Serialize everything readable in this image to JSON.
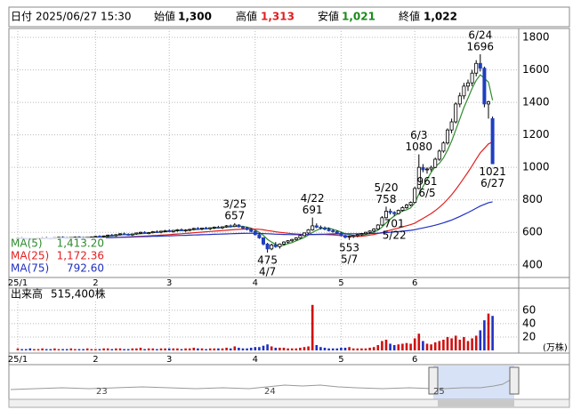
{
  "header": {
    "date_label": "日付",
    "date": "2025/06/27 15:30",
    "open": {
      "label": "始値",
      "value": "1,300"
    },
    "high": {
      "label": "高値",
      "value": "1,313"
    },
    "low": {
      "label": "安値",
      "value": "1,021"
    },
    "close": {
      "label": "終値",
      "value": "1,022"
    }
  },
  "chart_data": {
    "type": "candlestick",
    "categories": [
      "25/1",
      null,
      null,
      null,
      null,
      null,
      null,
      null,
      null,
      null,
      null,
      null,
      null,
      null,
      null,
      null,
      null,
      null,
      null,
      "2",
      null,
      null,
      null,
      null,
      null,
      null,
      null,
      null,
      null,
      null,
      null,
      null,
      null,
      null,
      null,
      null,
      null,
      "3",
      null,
      null,
      null,
      null,
      null,
      null,
      null,
      null,
      null,
      null,
      null,
      null,
      null,
      null,
      null,
      null,
      null,
      null,
      null,
      null,
      "4",
      null,
      null,
      null,
      null,
      null,
      null,
      null,
      null,
      null,
      null,
      null,
      null,
      null,
      null,
      null,
      null,
      null,
      null,
      null,
      null,
      "5",
      null,
      null,
      null,
      null,
      null,
      null,
      null,
      null,
      null,
      null,
      null,
      null,
      null,
      null,
      null,
      null,
      null,
      "6",
      null,
      null,
      null,
      null,
      null,
      null,
      null,
      null,
      null,
      null,
      null,
      null,
      null,
      null,
      null,
      null,
      null,
      null,
      null
    ],
    "ohlc": [
      [
        560,
        568,
        555,
        565
      ],
      [
        565,
        570,
        558,
        562
      ],
      [
        562,
        566,
        556,
        560
      ],
      [
        560,
        565,
        552,
        558
      ],
      [
        558,
        563,
        550,
        561
      ],
      [
        561,
        567,
        556,
        564
      ],
      [
        564,
        570,
        559,
        566
      ],
      [
        566,
        572,
        560,
        563
      ],
      [
        563,
        568,
        557,
        562
      ],
      [
        562,
        569,
        558,
        567
      ],
      [
        567,
        573,
        561,
        569
      ],
      [
        569,
        575,
        563,
        566
      ],
      [
        566,
        571,
        560,
        564
      ],
      [
        564,
        570,
        559,
        568
      ],
      [
        568,
        574,
        562,
        570
      ],
      [
        570,
        576,
        564,
        567
      ],
      [
        567,
        572,
        561,
        565
      ],
      [
        565,
        571,
        560,
        569
      ],
      [
        569,
        575,
        563,
        571
      ],
      [
        571,
        578,
        565,
        575
      ],
      [
        575,
        582,
        569,
        573
      ],
      [
        573,
        580,
        567,
        578
      ],
      [
        578,
        586,
        572,
        583
      ],
      [
        583,
        590,
        576,
        580
      ],
      [
        580,
        588,
        574,
        586
      ],
      [
        586,
        595,
        580,
        591
      ],
      [
        591,
        598,
        584,
        588
      ],
      [
        588,
        594,
        580,
        584
      ],
      [
        584,
        592,
        578,
        590
      ],
      [
        590,
        599,
        585,
        596
      ],
      [
        596,
        604,
        589,
        600
      ],
      [
        600,
        606,
        592,
        595
      ],
      [
        595,
        602,
        588,
        598
      ],
      [
        598,
        608,
        593,
        604
      ],
      [
        604,
        612,
        596,
        601
      ],
      [
        601,
        610,
        594,
        607
      ],
      [
        607,
        615,
        600,
        610
      ],
      [
        610,
        618,
        602,
        605
      ],
      [
        605,
        614,
        598,
        612
      ],
      [
        612,
        620,
        604,
        616
      ],
      [
        616,
        624,
        608,
        611
      ],
      [
        611,
        619,
        603,
        614
      ],
      [
        614,
        622,
        606,
        618
      ],
      [
        618,
        628,
        612,
        624
      ],
      [
        624,
        632,
        616,
        620
      ],
      [
        620,
        628,
        612,
        626
      ],
      [
        626,
        634,
        618,
        622
      ],
      [
        622,
        630,
        614,
        628
      ],
      [
        628,
        636,
        620,
        632
      ],
      [
        632,
        640,
        624,
        628
      ],
      [
        628,
        636,
        620,
        634
      ],
      [
        634,
        645,
        628,
        640
      ],
      [
        640,
        648,
        630,
        636
      ],
      [
        636,
        657,
        632,
        645
      ],
      [
        645,
        650,
        630,
        634
      ],
      [
        634,
        640,
        620,
        626
      ],
      [
        626,
        634,
        612,
        618
      ],
      [
        618,
        624,
        600,
        606
      ],
      [
        606,
        612,
        580,
        586
      ],
      [
        586,
        592,
        560,
        566
      ],
      [
        566,
        570,
        520,
        528
      ],
      [
        528,
        535,
        475,
        498
      ],
      [
        498,
        530,
        490,
        522
      ],
      [
        522,
        540,
        505,
        512
      ],
      [
        512,
        532,
        500,
        528
      ],
      [
        528,
        545,
        520,
        540
      ],
      [
        540,
        552,
        532,
        548
      ],
      [
        548,
        560,
        540,
        556
      ],
      [
        556,
        570,
        550,
        565
      ],
      [
        565,
        585,
        560,
        580
      ],
      [
        580,
        600,
        575,
        596
      ],
      [
        596,
        620,
        590,
        615
      ],
      [
        615,
        691,
        610,
        640
      ],
      [
        640,
        655,
        625,
        632
      ],
      [
        632,
        642,
        618,
        626
      ],
      [
        626,
        636,
        612,
        620
      ],
      [
        620,
        630,
        605,
        610
      ],
      [
        610,
        620,
        598,
        604
      ],
      [
        604,
        612,
        590,
        595
      ],
      [
        595,
        602,
        575,
        580
      ],
      [
        580,
        586,
        562,
        570
      ],
      [
        570,
        578,
        553,
        575
      ],
      [
        575,
        584,
        565,
        580
      ],
      [
        580,
        590,
        570,
        586
      ],
      [
        586,
        596,
        578,
        592
      ],
      [
        592,
        604,
        586,
        600
      ],
      [
        600,
        612,
        592,
        608
      ],
      [
        608,
        625,
        600,
        620
      ],
      [
        620,
        650,
        615,
        645
      ],
      [
        645,
        700,
        640,
        690
      ],
      [
        690,
        758,
        685,
        730
      ],
      [
        730,
        745,
        710,
        722
      ],
      [
        722,
        730,
        701,
        715
      ],
      [
        715,
        740,
        710,
        735
      ],
      [
        735,
        760,
        728,
        752
      ],
      [
        752,
        775,
        745,
        768
      ],
      [
        768,
        790,
        760,
        784
      ],
      [
        784,
        880,
        780,
        870
      ],
      [
        870,
        1080,
        865,
        1000
      ],
      [
        1000,
        1020,
        970,
        985
      ],
      [
        985,
        1000,
        961,
        990
      ],
      [
        990,
        1010,
        975,
        1000
      ],
      [
        1000,
        1060,
        995,
        1050
      ],
      [
        1050,
        1110,
        1040,
        1100
      ],
      [
        1100,
        1160,
        1090,
        1150
      ],
      [
        1150,
        1240,
        1140,
        1230
      ],
      [
        1230,
        1300,
        1210,
        1280
      ],
      [
        1280,
        1400,
        1270,
        1390
      ],
      [
        1390,
        1460,
        1370,
        1440
      ],
      [
        1440,
        1520,
        1420,
        1500
      ],
      [
        1500,
        1540,
        1470,
        1520
      ],
      [
        1520,
        1600,
        1500,
        1580
      ],
      [
        1580,
        1660,
        1560,
        1640
      ],
      [
        1640,
        1696,
        1590,
        1610
      ],
      [
        1610,
        1620,
        1370,
        1390
      ],
      [
        1390,
        1410,
        1300,
        1404
      ],
      [
        1300,
        1313,
        1021,
        1022
      ]
    ],
    "up_color": "#ffffff",
    "down_color": "#1f3fbf",
    "ylim": [
      322,
      1855
    ],
    "yticks": [
      400,
      600,
      800,
      1000,
      1200,
      1400,
      1600,
      1800
    ],
    "grid": true,
    "moving_averages": [
      {
        "name": "MA(5)",
        "period": 5,
        "value": "1,413.20",
        "color": "#2e8b2e"
      },
      {
        "name": "MA(25)",
        "period": 25,
        "value": "1,172.36",
        "color": "#e02020"
      },
      {
        "name": "MA(75)",
        "period": 75,
        "value": "792.60",
        "color": "#2030c0"
      }
    ],
    "highs": [
      {
        "date": "3/25",
        "value": 657
      },
      {
        "date": "4/22",
        "value": 691
      },
      {
        "date": "5/20",
        "value": 758
      },
      {
        "date": "6/3",
        "value": 1080
      },
      {
        "date": "6/24",
        "value": 1696
      }
    ],
    "lows": [
      {
        "date": "4/7",
        "value": 475
      },
      {
        "date": "5/7",
        "value": 553
      },
      {
        "date": "5/22",
        "value": 701
      },
      {
        "date": "6/5",
        "value": 961
      },
      {
        "date": "6/27",
        "value": 1021
      }
    ],
    "volume": {
      "title": "出来高",
      "last": "515,400株",
      "unit": "(万株)",
      "up_color": "#d01010",
      "down_color": "#2030c0",
      "ylim": [
        -4,
        93
      ],
      "yticks": [
        20,
        40,
        60
      ],
      "values": [
        3,
        2,
        2,
        3,
        2,
        2,
        3,
        2,
        2,
        3,
        2,
        2,
        2,
        3,
        2,
        2,
        2,
        3,
        2,
        2,
        2,
        3,
        3,
        2,
        3,
        3,
        2,
        2,
        3,
        3,
        4,
        2,
        3,
        3,
        2,
        3,
        3,
        3,
        3,
        3,
        2,
        3,
        3,
        4,
        3,
        3,
        2,
        3,
        3,
        3,
        3,
        4,
        3,
        6,
        4,
        3,
        3,
        4,
        5,
        5,
        7,
        9,
        6,
        4,
        4,
        4,
        3,
        3,
        3,
        4,
        5,
        6,
        68,
        8,
        5,
        4,
        3,
        3,
        3,
        4,
        4,
        5,
        3,
        3,
        3,
        3,
        4,
        5,
        8,
        14,
        16,
        10,
        8,
        9,
        10,
        11,
        10,
        18,
        25,
        14,
        10,
        9,
        12,
        14,
        16,
        20,
        18,
        22,
        16,
        20,
        14,
        18,
        22,
        30,
        45,
        55,
        51.54
      ]
    },
    "navigator": {
      "labels": [
        "23",
        "24",
        "25"
      ]
    }
  }
}
